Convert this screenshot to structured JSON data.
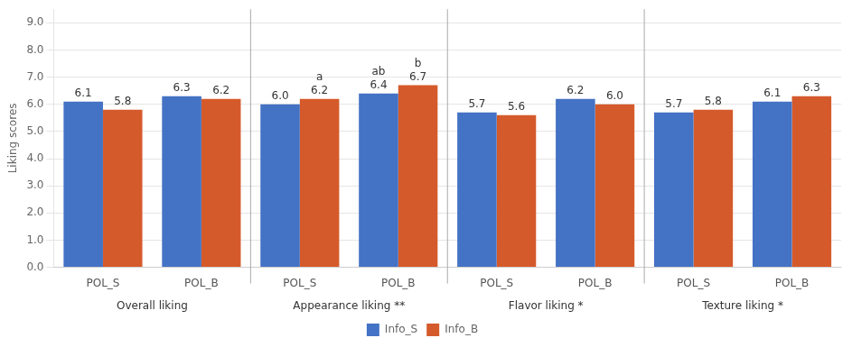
{
  "chart_data": {
    "type": "bar",
    "categories": [
      "POL_S",
      "POL_B",
      "POL_S",
      "POL_B",
      "POL_S",
      "POL_B",
      "POL_S",
      "POL_B"
    ],
    "group_labels": [
      "Overall liking",
      "Appearance liking **",
      "Flavor liking *",
      "Texture liking *"
    ],
    "series": [
      {
        "name": "Info_S",
        "color": "#4472C4",
        "values": [
          6.1,
          6.3,
          6.0,
          6.4,
          5.7,
          6.2,
          5.7,
          6.1
        ],
        "value_labels": [
          "6.1",
          "6.3",
          "6.0",
          "6.4",
          "5.7",
          "6.2",
          "5.7",
          "6.1"
        ]
      },
      {
        "name": "Info_B",
        "color": "#D55A2B",
        "values": [
          5.8,
          6.2,
          6.2,
          6.7,
          5.6,
          6.0,
          5.8,
          6.3
        ],
        "value_labels": [
          "5.8",
          "6.2",
          "6.2",
          "6.7",
          "5.6",
          "6.0",
          "5.8",
          "6.3"
        ]
      }
    ],
    "y_label": "Liking scores",
    "ylim": [
      0,
      9.5
    ],
    "yticks": [
      {
        "value": 0,
        "label": "0.0"
      },
      {
        "value": 1,
        "label": "1.0"
      },
      {
        "value": 2,
        "label": "2.0"
      },
      {
        "value": 3,
        "label": "3.0"
      },
      {
        "value": 4,
        "label": "4.0"
      },
      {
        "value": 5,
        "label": "5.0"
      },
      {
        "value": 6,
        "label": "6.0"
      },
      {
        "value": 7,
        "label": "7.0"
      },
      {
        "value": 8,
        "label": "8.0"
      },
      {
        "value": 9,
        "label": "9.0"
      }
    ],
    "grid": true,
    "legend": "bottom",
    "data_labels": true,
    "annotations": [
      {
        "text": "a",
        "series": "Info_B",
        "index": 2
      },
      {
        "text": "ab",
        "series": "Info_S",
        "index": 3
      },
      {
        "text": "b",
        "series": "Info_B",
        "index": 3
      }
    ]
  }
}
